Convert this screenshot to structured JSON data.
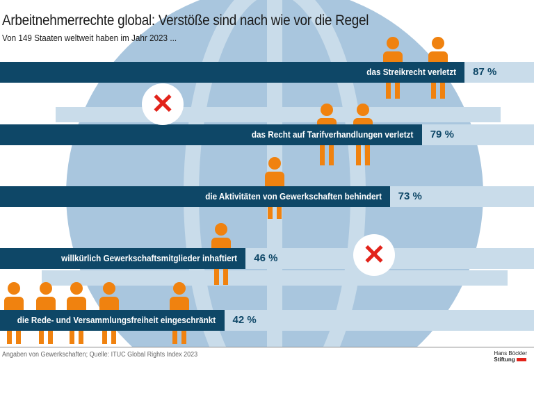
{
  "title": "Arbeitnehmerrechte global: Verstöße sind nach wie vor die Regel",
  "subtitle": "Von 149 Staaten weltweit haben im Jahr 2023 ...",
  "source": "Angaben von Gewerkschaften; Quelle: ITUC Global Rights Index 2023",
  "logo": {
    "line1": "Hans Böckler",
    "line2": "Stiftung"
  },
  "colors": {
    "bar": "#0e4767",
    "track": "#c9dcea",
    "globe": "#a9c6de",
    "figures": "#f0820f",
    "x_mark": "#e2231a"
  },
  "icons": [
    "globe-icon",
    "protester-figure-icon",
    "x-mark-icon",
    "megaphone-icon",
    "prison-bars-icon"
  ],
  "chart_data": {
    "type": "bar",
    "orientation": "horizontal",
    "unit": "%",
    "xlim": [
      0,
      100
    ],
    "categories": [
      "das Streikrecht verletzt",
      "das Recht auf Tarifverhandlungen verletzt",
      "die Aktivitäten von Gewerkschaften behindert",
      "willkürlich Gewerkschaftsmitglieder inhaftiert",
      "die Rede- und Versammlungsfreiheit eingeschränkt"
    ],
    "values": [
      87,
      79,
      73,
      46,
      42
    ],
    "value_labels": [
      "87 %",
      "79 %",
      "73 %",
      "46 %",
      "42 %"
    ]
  }
}
